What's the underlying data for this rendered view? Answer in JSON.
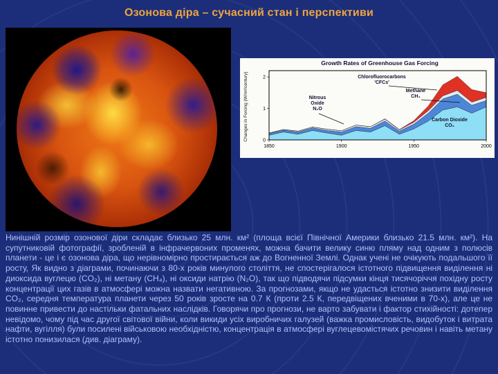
{
  "slide": {
    "title": "Озонова діра – сучасний стан і перспективи",
    "body_text": "Нинішній розмір озонової діри складає близько 25 млн. км² (площа всієї Північної Америки близько 21.5 млн. км²). На супутниковій фотографії, зробленій в інфрачервоних променях, можна бачити велику синю пляму над одним з полюсів планети - це і є озонова діра, що нерівномірно простирається аж до Вогненної Землі. Однак учені не очікують подальшого її росту, Як видно з діаграми, починаючи з 80-х років минулого століття, не спостерігалося істотного підвищення виділення ні диоксида вуглецю (CO₂), ні метану (CH₄), ні оксиди натрію (N₂O), так що підводячи підсумки кінця тисячоріччя похідну росту концентрації цих газів в атмосфері можна назвати негативною. За прогнозами, якщо не удасться істотно знизити виділення CO₂, середня температура планети через 50 років зросте на 0.7 К (проти 2.5 К, передвіщених вченими в 70-х), але це не повинне привести до настільки фатальних наслідків. Говорячи про прогнози, не варто забувати і фактор стихійності: дотепер невідомо, чому під час другої світової війни, коли викиди усіх виробничих галузей (важка промисловість, видобуток і витрата нафти, вугілля) були посилені військовою необхідністю, концентрація в атмосфері вуглецевомістячих речовин і навіть метану істотно понизилася (див. діаграму)."
  },
  "chart_data": {
    "type": "area",
    "stacked": true,
    "title": "Growth Rates of Greenhouse Gas Forcing",
    "ylabel": "Changes in Forcing (W/m²/century)",
    "xlabel": "",
    "grid": false,
    "legend_position": "annotations-inside",
    "x": [
      1850,
      1860,
      1870,
      1880,
      1890,
      1900,
      1910,
      1920,
      1930,
      1940,
      1950,
      1960,
      1970,
      1980,
      1990,
      2000
    ],
    "x_ticks": [
      1850,
      1900,
      1950,
      2000
    ],
    "y_ticks": [
      0,
      1,
      2
    ],
    "ylim": [
      0,
      2.2
    ],
    "series": [
      {
        "name": "Carbon Dioxide CO₂",
        "color": "#8edef5",
        "values": [
          0.15,
          0.25,
          0.18,
          0.3,
          0.22,
          0.15,
          0.3,
          0.25,
          0.45,
          0.18,
          0.35,
          0.6,
          0.95,
          1.05,
          0.85,
          1.05
        ]
      },
      {
        "name": "Methane CH₄",
        "color": "#4d86d8",
        "values": [
          0.05,
          0.06,
          0.07,
          0.08,
          0.08,
          0.1,
          0.12,
          0.12,
          0.15,
          0.1,
          0.15,
          0.25,
          0.35,
          0.4,
          0.25,
          0.2
        ]
      },
      {
        "name": "Nitrous Oxide N₂O",
        "color": "#dcebf4",
        "values": [
          0.02,
          0.02,
          0.03,
          0.03,
          0.04,
          0.04,
          0.05,
          0.05,
          0.06,
          0.04,
          0.06,
          0.08,
          0.1,
          0.12,
          0.1,
          0.1
        ]
      },
      {
        "name": "Chlorofluorocarbons 'CFCs'",
        "color": "#e03125",
        "values": [
          0,
          0,
          0,
          0,
          0,
          0,
          0,
          0,
          0.01,
          0.01,
          0.05,
          0.15,
          0.35,
          0.45,
          0.4,
          0.15
        ]
      }
    ],
    "annotations": [
      {
        "text": "Chlorofluorocarbons\n'CFCs'"
      },
      {
        "text": "Nitrous\nOxide\nN₂O"
      },
      {
        "text": "Methane\nCH₄"
      },
      {
        "text": "Carbon Dioxide\nCO₂"
      }
    ]
  }
}
